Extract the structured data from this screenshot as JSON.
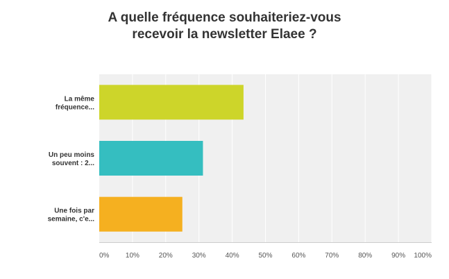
{
  "title_lines": [
    "A quelle fréquence souhaiteriez-vous",
    "recevoir la newsletter Elaee ?"
  ],
  "chart_data": {
    "type": "bar",
    "orientation": "horizontal",
    "title": "A quelle fréquence souhaiteriez-vous recevoir la newsletter Elaee ?",
    "categories": [
      [
        "La même",
        "fréquence..."
      ],
      [
        "Un peu moins",
        "souvent : 2..."
      ],
      [
        "Une fois par",
        "semaine, c'e..."
      ]
    ],
    "values": [
      43.4,
      31.2,
      25.0
    ],
    "colors": [
      "#cdd52a",
      "#35bec0",
      "#f5b020"
    ],
    "x_ticks": [
      "0%",
      "10%",
      "20%",
      "30%",
      "40%",
      "50%",
      "60%",
      "70%",
      "80%",
      "90%",
      "100%"
    ],
    "xlim": [
      0,
      100
    ],
    "grid": true
  }
}
